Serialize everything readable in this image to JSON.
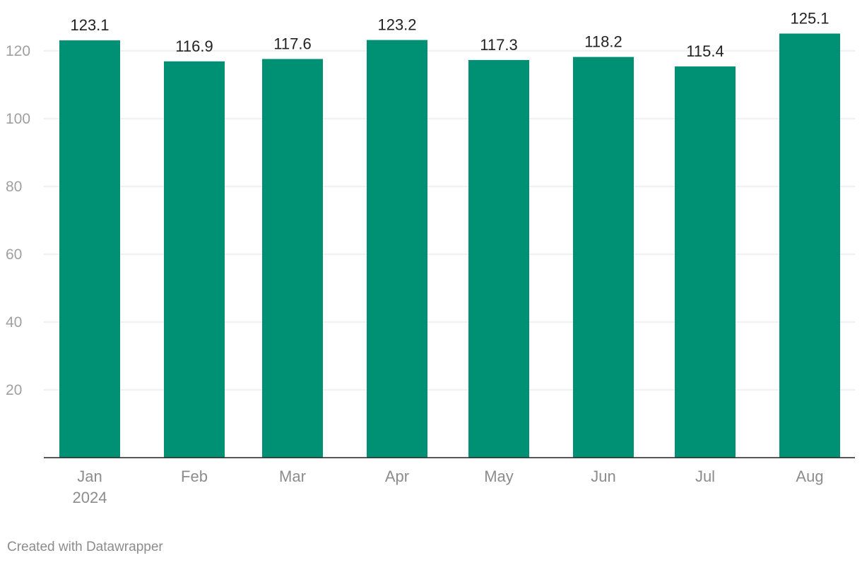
{
  "chart_data": {
    "type": "bar",
    "title": "",
    "xlabel": "",
    "ylabel": "",
    "categories": [
      "Jan",
      "Feb",
      "Mar",
      "Apr",
      "May",
      "Jun",
      "Jul",
      "Aug"
    ],
    "category_sublabels": [
      "2024",
      "",
      "",
      "",
      "",
      "",
      "",
      ""
    ],
    "values": [
      123.1,
      116.9,
      117.6,
      123.2,
      117.3,
      118.2,
      115.4,
      125.1
    ],
    "value_labels": [
      "123.1",
      "116.9",
      "117.6",
      "123.2",
      "117.3",
      "118.2",
      "115.4",
      "125.1"
    ],
    "ylim": [
      0,
      125.1
    ],
    "yticks": [
      20,
      40,
      60,
      80,
      100,
      120
    ],
    "ytick_labels": [
      "20",
      "40",
      "60",
      "80",
      "100",
      "120"
    ],
    "grid": true,
    "legend": "none",
    "bar_color": "#009175"
  },
  "footer": {
    "credit": "Created with Datawrapper"
  }
}
